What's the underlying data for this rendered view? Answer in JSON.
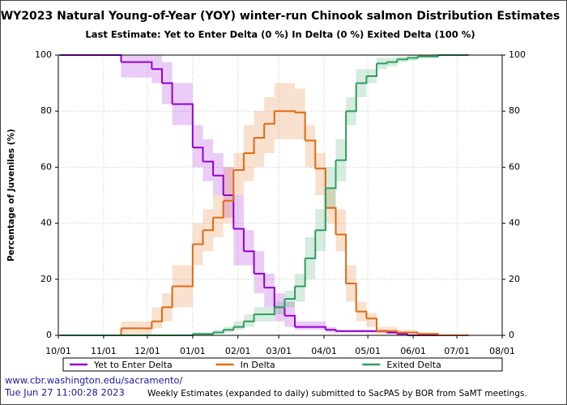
{
  "chart_data": {
    "type": "step-band",
    "title": "WY2023 Natural Young-of-Year (YOY) winter-run Chinook salmon Distribution Estimates",
    "subtitle": "Last Estimate:  Yet to Enter Delta (0 %) In Delta (0 %) Exited Delta (100 %)",
    "y_label": "Percentage of Juveniles (%)",
    "xlim": [
      0,
      304
    ],
    "xticks": [
      {
        "value": 0,
        "label": "10/01"
      },
      {
        "value": 31,
        "label": "11/01"
      },
      {
        "value": 61,
        "label": "12/01"
      },
      {
        "value": 92,
        "label": "01/01"
      },
      {
        "value": 123,
        "label": "02/01"
      },
      {
        "value": 151,
        "label": "03/01"
      },
      {
        "value": 182,
        "label": "04/01"
      },
      {
        "value": 212,
        "label": "05/01"
      },
      {
        "value": 243,
        "label": "06/01"
      },
      {
        "value": 273,
        "label": "07/01"
      },
      {
        "value": 304,
        "label": "08/01"
      }
    ],
    "ylim": [
      0,
      100
    ],
    "yticks": [
      0,
      20,
      40,
      60,
      80,
      100
    ],
    "grid": true,
    "legend": "bottom",
    "x": [
      1,
      8,
      15,
      22,
      29,
      36,
      43,
      50,
      57,
      64,
      71,
      78,
      85,
      92,
      99,
      106,
      113,
      120,
      127,
      134,
      141,
      148,
      155,
      162,
      169,
      176,
      183,
      190,
      197,
      204,
      211,
      218,
      225,
      232,
      239,
      246,
      253,
      260,
      267,
      274
    ],
    "series": [
      {
        "name": "Yet to Enter Delta",
        "color": "#9400d3",
        "values": [
          100,
          100,
          100,
          100,
          100,
          100,
          97.5,
          97.5,
          97.5,
          95,
          90,
          82.5,
          82.5,
          67,
          62,
          57,
          50,
          38,
          30,
          22,
          17,
          10,
          7,
          3,
          3,
          3,
          2,
          1.5,
          1.5,
          1.5,
          1.5,
          1.5,
          1,
          0.5,
          0,
          0,
          0,
          0,
          0,
          0
        ],
        "lower": [
          100,
          100,
          100,
          100,
          100,
          100,
          92,
          92,
          92,
          90,
          82.5,
          75,
          75,
          60,
          55,
          50,
          42,
          25,
          25,
          15,
          10,
          5,
          3,
          2,
          2,
          2,
          1,
          1,
          1,
          1,
          1,
          1,
          0.5,
          0,
          0,
          0,
          0,
          0,
          0,
          0
        ],
        "upper": [
          100,
          100,
          100,
          100,
          100,
          100,
          100,
          100,
          100,
          100,
          97.5,
          90,
          90,
          75,
          70,
          65,
          60,
          50,
          37.5,
          30,
          22,
          15,
          12,
          5,
          5,
          5,
          3,
          2,
          2,
          2,
          2,
          2,
          1.5,
          1,
          0,
          0,
          0,
          0,
          0,
          0
        ]
      },
      {
        "name": "In Delta",
        "color": "#e06a10",
        "values": [
          0,
          0,
          0,
          0,
          0,
          0,
          2.5,
          2.5,
          2.5,
          5,
          10,
          17.5,
          17.5,
          32.5,
          37.5,
          42,
          48,
          59,
          65,
          70.5,
          75.5,
          80,
          80,
          79.5,
          69.5,
          59.5,
          45.5,
          36,
          18.5,
          8.5,
          6,
          1.5,
          1.5,
          1,
          1,
          0.5,
          0.5,
          0,
          0,
          0
        ],
        "lower": [
          0,
          0,
          0,
          0,
          0,
          0,
          0,
          0,
          0,
          2.5,
          5,
          10,
          10,
          25,
          30,
          35,
          40,
          50,
          55,
          60,
          65,
          70,
          70,
          70,
          60,
          50,
          40,
          30,
          12,
          5,
          3,
          0.5,
          0.5,
          0,
          0,
          0,
          0,
          0,
          0,
          0
        ],
        "upper": [
          0,
          0,
          0,
          0,
          0,
          0,
          5,
          5,
          5,
          10,
          15,
          25,
          25,
          40,
          45,
          50,
          60,
          65,
          75,
          80,
          85,
          90,
          90,
          88,
          75,
          65,
          52,
          45,
          25,
          12,
          8,
          3,
          3,
          2,
          2,
          1,
          1,
          0,
          0,
          0
        ]
      },
      {
        "name": "Exited Delta",
        "color": "#2e9e5e",
        "values": [
          0,
          0,
          0,
          0,
          0,
          0,
          0,
          0,
          0,
          0,
          0,
          0,
          0,
          0.5,
          0.5,
          1,
          2,
          3,
          5,
          7.5,
          7.5,
          10,
          13,
          17.5,
          27.5,
          37.5,
          52.5,
          62.5,
          80,
          90,
          92.5,
          97,
          97.5,
          98.5,
          99,
          99.5,
          99.5,
          100,
          100,
          100
        ],
        "lower": [
          0,
          0,
          0,
          0,
          0,
          0,
          0,
          0,
          0,
          0,
          0,
          0,
          0,
          0,
          0,
          0.5,
          1,
          2,
          3,
          5,
          5,
          7.5,
          10,
          12,
          20,
          30,
          45,
          55,
          75,
          85,
          90,
          95,
          96,
          97.5,
          98,
          99,
          99,
          100,
          100,
          100
        ],
        "upper": [
          0,
          0,
          0,
          0,
          0,
          0,
          0,
          0,
          0,
          0,
          0,
          0,
          0,
          1,
          1,
          2,
          3,
          5,
          7.5,
          10,
          10,
          12,
          16,
          22,
          35,
          45,
          60,
          70,
          85,
          95,
          95,
          99,
          99,
          99.5,
          100,
          100,
          100,
          100,
          100,
          100
        ]
      }
    ]
  },
  "footer": {
    "url": "www.cbr.washington.edu/sacramento/",
    "timestamp": "Tue Jun 27 11:00:28 2023",
    "note": "Weekly Estimates (expanded to daily) submitted to SacPAS by BOR from SaMT meetings."
  }
}
